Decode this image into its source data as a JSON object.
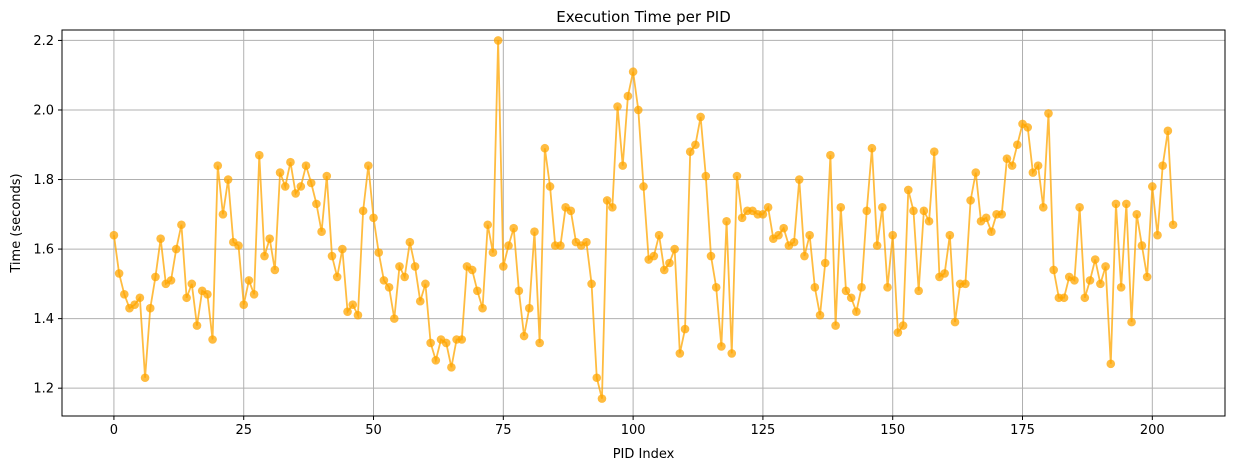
{
  "chart_data": {
    "type": "line",
    "title": "Execution Time per PID",
    "xlabel": "PID Index",
    "ylabel": "Time (seconds)",
    "xlim": [
      -10,
      214
    ],
    "ylim": [
      1.12,
      2.23
    ],
    "xticks": [
      0,
      25,
      50,
      75,
      100,
      125,
      150,
      175,
      200
    ],
    "yticks": [
      1.2,
      1.4,
      1.6,
      1.8,
      2.0,
      2.2
    ],
    "ytick_labels": [
      "1.2",
      "1.4",
      "1.6",
      "1.8",
      "2.0",
      "2.2"
    ],
    "grid": true,
    "legend": "none",
    "color": "#FFA500",
    "marker": "circle",
    "series": [
      {
        "values": [
          1.64,
          1.53,
          1.47,
          1.43,
          1.44,
          1.46,
          1.23,
          1.43,
          1.52,
          1.63,
          1.5,
          1.51,
          1.6,
          1.67,
          1.46,
          1.5,
          1.38,
          1.48,
          1.47,
          1.34,
          1.84,
          1.7,
          1.8,
          1.62,
          1.61,
          1.44,
          1.51,
          1.47,
          1.87,
          1.58,
          1.63,
          1.54,
          1.82,
          1.78,
          1.85,
          1.76,
          1.78,
          1.84,
          1.79,
          1.73,
          1.65,
          1.81,
          1.58,
          1.52,
          1.6,
          1.42,
          1.44,
          1.41,
          1.71,
          1.84,
          1.69,
          1.59,
          1.51,
          1.49,
          1.4,
          1.55,
          1.52,
          1.62,
          1.55,
          1.45,
          1.5,
          1.33,
          1.28,
          1.34,
          1.33,
          1.26,
          1.34,
          1.34,
          1.55,
          1.54,
          1.48,
          1.43,
          1.67,
          1.59,
          2.2,
          1.55,
          1.61,
          1.66,
          1.48,
          1.35,
          1.43,
          1.65,
          1.33,
          1.89,
          1.78,
          1.61,
          1.61,
          1.72,
          1.71,
          1.62,
          1.61,
          1.62,
          1.5,
          1.23,
          1.17,
          1.74,
          1.72,
          2.01,
          1.84,
          2.04,
          2.11,
          2.0,
          1.78,
          1.57,
          1.58,
          1.64,
          1.54,
          1.56,
          1.6,
          1.3,
          1.37,
          1.88,
          1.9,
          1.98,
          1.81,
          1.58,
          1.49,
          1.32,
          1.68,
          1.3,
          1.81,
          1.69,
          1.71,
          1.71,
          1.7,
          1.7,
          1.72,
          1.63,
          1.64,
          1.66,
          1.61,
          1.62,
          1.8,
          1.58,
          1.64,
          1.49,
          1.41,
          1.56,
          1.87,
          1.38,
          1.72,
          1.48,
          1.46,
          1.42,
          1.49,
          1.71,
          1.89,
          1.61,
          1.72,
          1.49,
          1.64,
          1.36,
          1.38,
          1.77,
          1.71,
          1.48,
          1.71,
          1.68,
          1.88,
          1.52,
          1.53,
          1.64,
          1.39,
          1.5,
          1.5,
          1.74,
          1.82,
          1.68,
          1.69,
          1.65,
          1.7,
          1.7,
          1.86,
          1.84,
          1.9,
          1.96,
          1.95,
          1.82,
          1.84,
          1.72,
          1.99,
          1.54,
          1.46,
          1.46,
          1.52,
          1.51,
          1.72,
          1.46,
          1.51,
          1.57,
          1.5,
          1.55,
          1.27,
          1.73,
          1.49,
          1.73,
          1.39,
          1.7,
          1.61,
          1.52,
          1.78,
          1.64,
          1.84,
          1.94,
          1.67
        ]
      }
    ]
  }
}
